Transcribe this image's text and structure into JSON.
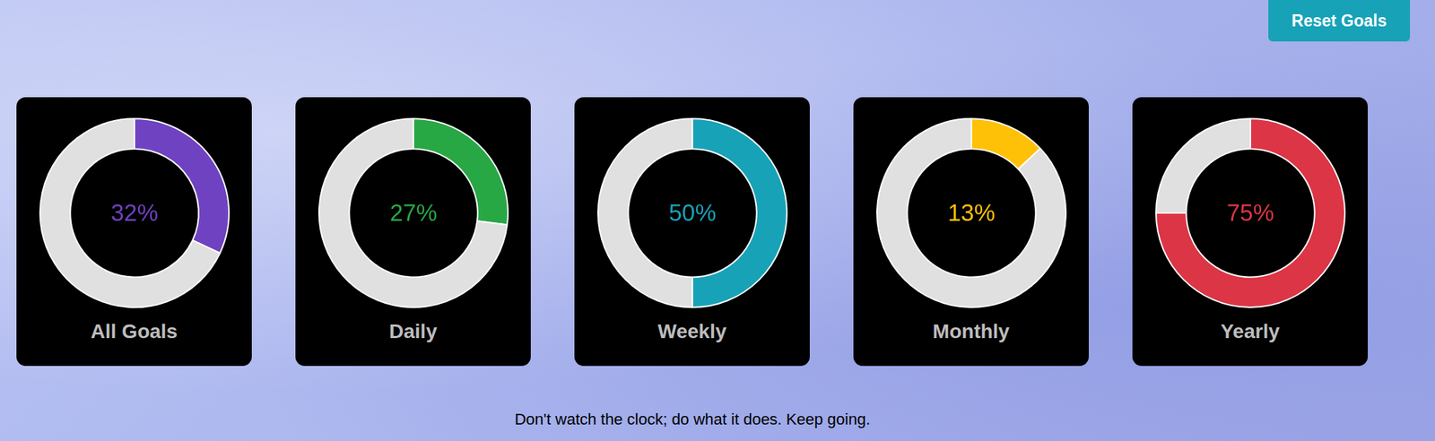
{
  "button": "Reset Goals",
  "quote": "Don't watch the clock; do what it does. Keep going.",
  "chart_data": [
    {
      "type": "doughnut",
      "title": "All Goals",
      "values": [
        32,
        68
      ],
      "value_labels": [
        "32%",
        null
      ],
      "colors": [
        "#6f42c1",
        "#e0e0e0"
      ]
    },
    {
      "type": "doughnut",
      "title": "Daily",
      "values": [
        27,
        73
      ],
      "value_labels": [
        "27%",
        null
      ],
      "colors": [
        "#28a745",
        "#e0e0e0"
      ]
    },
    {
      "type": "doughnut",
      "title": "Weekly",
      "values": [
        50,
        50
      ],
      "value_labels": [
        "50%",
        null
      ],
      "colors": [
        "#17a2b8",
        "#e0e0e0"
      ]
    },
    {
      "type": "doughnut",
      "title": "Monthly",
      "values": [
        13,
        87
      ],
      "value_labels": [
        "13%",
        null
      ],
      "colors": [
        "#ffc107",
        "#e0e0e0"
      ]
    },
    {
      "type": "doughnut",
      "title": "Yearly",
      "values": [
        75,
        25
      ],
      "value_labels": [
        "75%",
        null
      ],
      "colors": [
        "#dc3545",
        "#e0e0e0"
      ]
    }
  ]
}
